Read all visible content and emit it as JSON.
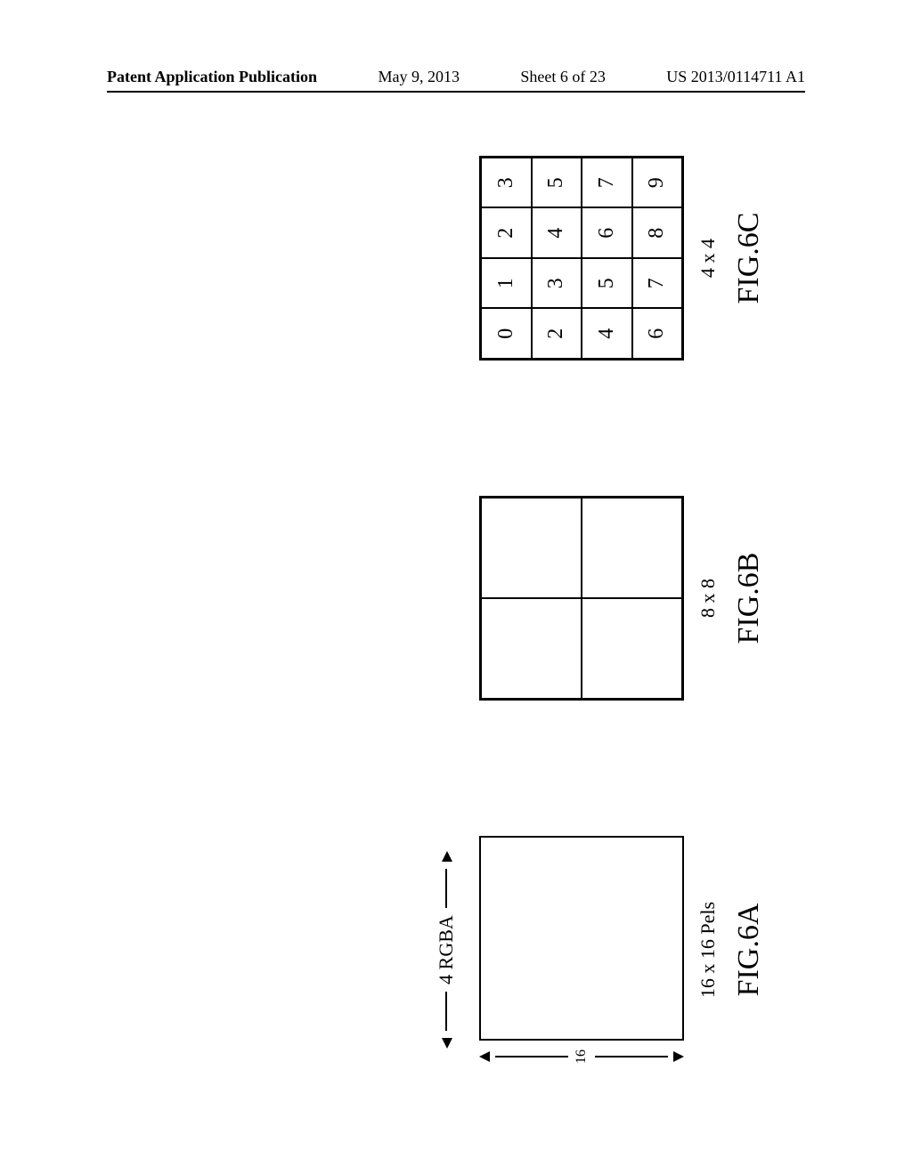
{
  "header": {
    "left": "Patent Application Publication",
    "date": "May 9, 2013",
    "sheet": "Sheet 6 of 23",
    "pubno": "US 2013/0114711 A1"
  },
  "fig6a": {
    "top_label": "4 RGBA",
    "side_label": "16",
    "size_label": "16 x 16 Pels",
    "name": "FIG.6A",
    "box_border_color": "#000000"
  },
  "fig6b": {
    "size_label": "8 x 8",
    "name": "FIG.6B",
    "grid": {
      "rows": 2,
      "cols": 2
    },
    "box_border_color": "#000000"
  },
  "fig6c": {
    "size_label": "4 x 4",
    "name": "FIG.6C",
    "grid": {
      "rows": 4,
      "cols": 4
    },
    "cells": [
      [
        "0",
        "1",
        "2",
        "3"
      ],
      [
        "2",
        "3",
        "4",
        "5"
      ],
      [
        "4",
        "5",
        "6",
        "7"
      ],
      [
        "6",
        "7",
        "8",
        "9"
      ]
    ],
    "cell_fontsize": 24,
    "box_border_color": "#000000"
  },
  "style": {
    "background_color": "#ffffff",
    "text_color": "#000000",
    "caption_size_fontsize": 22,
    "caption_name_fontsize": 34
  }
}
